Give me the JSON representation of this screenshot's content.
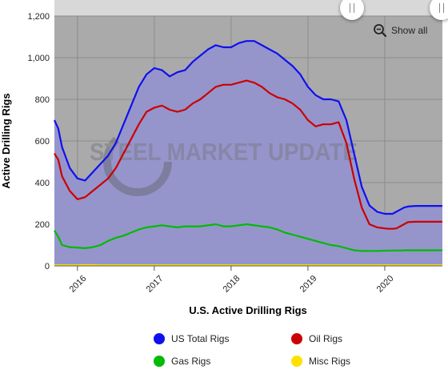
{
  "chart_data": {
    "type": "line",
    "title": "",
    "xlabel": "U.S. Active Drilling Rigs",
    "ylabel": "Active Drilling Rigs",
    "ylim": [
      0,
      1200
    ],
    "yticks": [
      0,
      200,
      400,
      600,
      800,
      1000,
      1200
    ],
    "yticks_labels": [
      "0",
      "200",
      "400",
      "600",
      "800",
      "1,000",
      "1,200"
    ],
    "xlim": [
      2015.7,
      2020.75
    ],
    "xticks": [
      2016,
      2017,
      2018,
      2019,
      2020
    ],
    "xticks_labels": [
      "2016",
      "2017",
      "2018",
      "2019",
      "2020"
    ],
    "grid": true,
    "legend_position": "bottom",
    "watermark": "STEEL MARKET UPDATE",
    "x": [
      2015.7,
      2015.75,
      2015.8,
      2015.9,
      2016.0,
      2016.1,
      2016.2,
      2016.3,
      2016.4,
      2016.5,
      2016.6,
      2016.7,
      2016.8,
      2016.9,
      2017.0,
      2017.1,
      2017.2,
      2017.3,
      2017.4,
      2017.5,
      2017.6,
      2017.7,
      2017.8,
      2017.9,
      2018.0,
      2018.1,
      2018.2,
      2018.3,
      2018.4,
      2018.5,
      2018.6,
      2018.7,
      2018.8,
      2018.9,
      2019.0,
      2019.1,
      2019.2,
      2019.3,
      2019.4,
      2019.5,
      2019.6,
      2019.7,
      2019.8,
      2019.9,
      2020.0,
      2020.05,
      2020.1,
      2020.15,
      2020.2,
      2020.25,
      2020.3,
      2020.4,
      2020.5,
      2020.6,
      2020.7,
      2020.75
    ],
    "series": [
      {
        "name": "US Total Rigs",
        "color": "#1010ee",
        "values": [
          700,
          660,
          570,
          470,
          420,
          410,
          450,
          490,
          530,
          590,
          680,
          770,
          860,
          920,
          950,
          940,
          910,
          930,
          940,
          980,
          1010,
          1040,
          1060,
          1050,
          1050,
          1070,
          1080,
          1080,
          1060,
          1040,
          1020,
          990,
          960,
          920,
          860,
          820,
          800,
          800,
          790,
          700,
          540,
          380,
          290,
          260,
          250,
          250,
          250,
          260,
          270,
          280,
          285,
          288,
          288,
          288,
          288,
          288
        ]
      },
      {
        "name": "Oil Rigs",
        "color": "#cc0000",
        "values": [
          540,
          510,
          430,
          360,
          320,
          330,
          360,
          390,
          420,
          470,
          540,
          610,
          680,
          740,
          760,
          770,
          750,
          740,
          750,
          780,
          800,
          830,
          860,
          870,
          870,
          880,
          890,
          880,
          860,
          830,
          810,
          800,
          780,
          750,
          700,
          670,
          680,
          680,
          690,
          590,
          420,
          280,
          200,
          185,
          180,
          178,
          178,
          180,
          190,
          200,
          210,
          212,
          212,
          212,
          212,
          212
        ]
      },
      {
        "name": "Gas Rigs",
        "color": "#00bb00",
        "values": [
          170,
          140,
          100,
          90,
          88,
          85,
          90,
          100,
          120,
          135,
          145,
          160,
          175,
          185,
          190,
          195,
          190,
          185,
          190,
          190,
          190,
          195,
          200,
          190,
          190,
          195,
          200,
          195,
          190,
          185,
          175,
          160,
          150,
          140,
          130,
          120,
          110,
          100,
          95,
          85,
          75,
          72,
          72,
          72,
          73,
          73,
          74,
          74,
          74,
          75,
          75,
          75,
          75,
          75,
          75,
          75
        ]
      },
      {
        "name": "Misc Rigs",
        "color": "#ffe000",
        "values": [
          3,
          3,
          3,
          3,
          3,
          4,
          4,
          3,
          3,
          3,
          3,
          3,
          3,
          3,
          3,
          3,
          3,
          3,
          3,
          3,
          3,
          3,
          3,
          3,
          3,
          3,
          3,
          3,
          3,
          3,
          3,
          3,
          3,
          3,
          3,
          3,
          3,
          3,
          3,
          3,
          3,
          3,
          3,
          3,
          3,
          3,
          3,
          3,
          3,
          3,
          3,
          3,
          3,
          3,
          3,
          3
        ]
      }
    ]
  },
  "ui": {
    "show_all_label": "Show all",
    "zoom_icon": "zoom-out-icon",
    "background_fill": "#9595cc",
    "plot_bg": "#aaaaaa"
  }
}
